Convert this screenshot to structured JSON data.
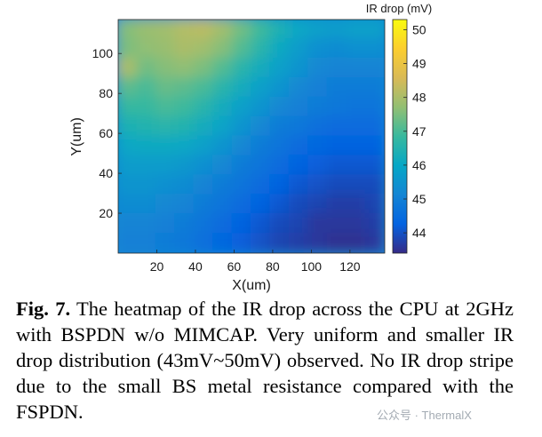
{
  "chart_data": {
    "type": "heatmap",
    "title": "",
    "xlabel": "X(um)",
    "ylabel": "Y(um)",
    "xlim": [
      0,
      138
    ],
    "ylim": [
      0,
      117
    ],
    "xticks": [
      20,
      40,
      60,
      80,
      100,
      120
    ],
    "yticks": [
      20,
      40,
      60,
      80,
      100
    ],
    "colorbar": {
      "label": "IR drop (mV)",
      "range": [
        43.4,
        50.3
      ],
      "ticks": [
        44,
        45,
        46,
        47,
        48,
        49,
        50
      ],
      "colormap": "parula"
    },
    "value_range_mV": [
      43,
      50
    ],
    "grid_shape": [
      12,
      14
    ],
    "values": [
      [
        47.6,
        47.8,
        47.9,
        48.1,
        48.2,
        47.9,
        47.4,
        46.9,
        46.4,
        46.0,
        45.8,
        45.7,
        45.8,
        45.8
      ],
      [
        47.5,
        47.7,
        47.8,
        48.0,
        47.9,
        47.6,
        47.1,
        46.6,
        46.1,
        45.7,
        45.4,
        45.3,
        45.4,
        45.4
      ],
      [
        48.0,
        47.4,
        47.6,
        47.7,
        47.5,
        47.1,
        46.6,
        46.2,
        45.8,
        45.5,
        45.2,
        45.1,
        45.1,
        45.1
      ],
      [
        47.2,
        47.0,
        47.3,
        47.2,
        47.0,
        46.6,
        46.2,
        45.8,
        45.5,
        45.2,
        45.0,
        44.9,
        44.9,
        44.9
      ],
      [
        46.8,
        46.8,
        47.0,
        46.9,
        46.6,
        46.2,
        45.8,
        45.5,
        45.2,
        45.0,
        44.9,
        44.8,
        44.7,
        44.7
      ],
      [
        46.4,
        46.5,
        46.6,
        46.5,
        46.2,
        45.9,
        45.5,
        45.2,
        44.9,
        44.8,
        44.6,
        44.5,
        44.5,
        44.5
      ],
      [
        46.0,
        46.1,
        46.1,
        46.0,
        45.8,
        45.5,
        45.2,
        44.9,
        44.7,
        44.5,
        44.4,
        44.3,
        44.3,
        44.3
      ],
      [
        45.7,
        45.7,
        45.7,
        45.6,
        45.4,
        45.2,
        44.9,
        44.7,
        44.5,
        44.3,
        44.2,
        44.1,
        44.1,
        44.1
      ],
      [
        45.5,
        45.5,
        45.4,
        45.3,
        45.1,
        44.9,
        44.7,
        44.5,
        44.3,
        44.1,
        44.0,
        43.9,
        43.9,
        43.9
      ],
      [
        45.3,
        45.3,
        45.2,
        45.1,
        44.9,
        44.7,
        44.5,
        44.3,
        44.1,
        43.9,
        43.8,
        43.7,
        43.7,
        43.8
      ],
      [
        45.1,
        45.1,
        45.0,
        44.9,
        44.7,
        44.5,
        44.3,
        44.1,
        43.9,
        43.8,
        43.6,
        43.6,
        43.6,
        43.7
      ],
      [
        45.0,
        45.0,
        44.9,
        44.8,
        44.6,
        44.4,
        44.2,
        44.0,
        43.8,
        43.7,
        43.6,
        43.5,
        43.5,
        43.6
      ]
    ]
  },
  "caption": {
    "label": "Fig. 7.",
    "text": " The heatmap of the IR drop across the CPU at 2GHz with BSPDN w/o MIMCAP. Very uniform and smaller IR drop distribution (43mV~50mV) observed. No IR drop stripe due to the small BS metal resistance compared with the FSPDN."
  },
  "watermark": "公众号 · ThermalX",
  "colormap_stops": [
    "#352a87",
    "#0363e1",
    "#1485d4",
    "#06a7c6",
    "#38b99e",
    "#92bf73",
    "#d9ba56",
    "#fcce2e",
    "#f9fb0e"
  ]
}
